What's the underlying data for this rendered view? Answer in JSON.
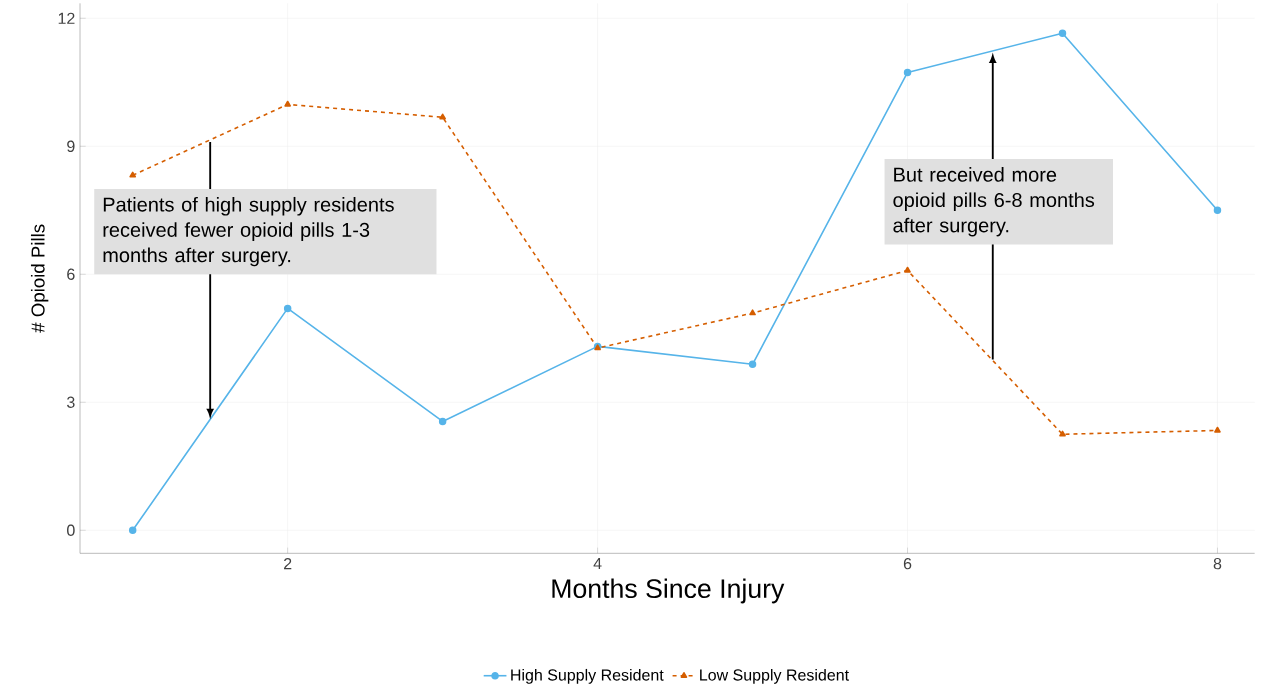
{
  "chart_data": {
    "type": "line",
    "xlabel": "Months Since Injury",
    "ylabel": "# Opioid Pills",
    "x": [
      1,
      2,
      3,
      4,
      5,
      6,
      7,
      8
    ],
    "series": [
      {
        "name": "High Supply Resident",
        "color": "#56b4e9",
        "marker": "circle",
        "line_style": "solid",
        "values": [
          0,
          5.2,
          2.55,
          4.31,
          3.89,
          10.73,
          11.65,
          7.5
        ]
      },
      {
        "name": "Low Supply Resident",
        "color": "#d55e00",
        "marker": "triangle",
        "line_style": "dashed",
        "values": [
          8.32,
          9.98,
          9.68,
          4.27,
          5.09,
          6.09,
          2.25,
          2.34
        ]
      }
    ],
    "xlim": [
      0.66,
      8.24
    ],
    "ylim": [
      -0.54,
      12.35
    ],
    "xticks": [
      2,
      4,
      6,
      8
    ],
    "yticks": [
      0,
      3,
      6,
      9,
      12
    ],
    "grid": true,
    "legend": "bottom",
    "annotations": [
      "Patients of high supply residents received fewer opioid pills 1-3 months after surgery.",
      "But received more opioid pills 6-8 months after surgery."
    ]
  }
}
